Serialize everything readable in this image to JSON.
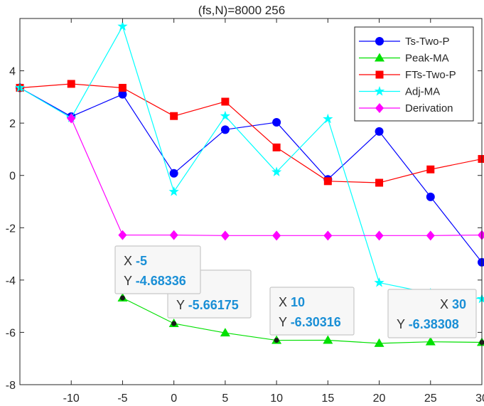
{
  "chart_data": {
    "type": "line",
    "title": "(fs,N)=8000   256",
    "xlabel": "",
    "ylabel": "",
    "x": [
      -15,
      -10,
      -5,
      0,
      5,
      10,
      15,
      20,
      25,
      30
    ],
    "xlim": [
      -15,
      30
    ],
    "ylim": [
      -8,
      6
    ],
    "xticks": [
      -10,
      -5,
      0,
      5,
      10,
      15,
      20,
      25,
      30
    ],
    "yticks": [
      -8,
      -6,
      -4,
      -2,
      0,
      2,
      4
    ],
    "xtick_labels": [
      "-10",
      "-5",
      "0",
      "5",
      "10",
      "15",
      "20",
      "25",
      "30"
    ],
    "ytick_labels": [
      "-8",
      "-6",
      "-4",
      "-2",
      "0",
      "2",
      "4"
    ],
    "legend_position": "top-right",
    "series": [
      {
        "name": "Ts-Two-P",
        "color": "#0000ff",
        "marker": "circle",
        "values": [
          3.35,
          2.25,
          3.1,
          0.08,
          1.75,
          2.03,
          -0.15,
          1.68,
          -0.82,
          -3.32
        ]
      },
      {
        "name": "Peak-MA",
        "color": "#00e000",
        "marker": "triangle",
        "values": [
          null,
          null,
          -4.68336,
          -5.66175,
          -6.02,
          -6.30316,
          -6.3,
          -6.42,
          -6.36,
          -6.38308
        ]
      },
      {
        "name": "FTs-Two-P",
        "color": "#ff0000",
        "marker": "square",
        "values": [
          3.35,
          3.5,
          3.35,
          2.27,
          2.82,
          1.07,
          -0.22,
          -0.28,
          0.23,
          0.63
        ]
      },
      {
        "name": "Adj-MA",
        "color": "#00ffff",
        "marker": "star",
        "values": [
          3.35,
          2.2,
          5.7,
          -0.62,
          2.27,
          0.13,
          2.16,
          -4.1,
          -4.5,
          -4.72
        ]
      },
      {
        "name": "Derivation",
        "color": "#ff00ff",
        "marker": "diamond",
        "values": [
          null,
          2.18,
          -2.28,
          -2.28,
          -2.3,
          -2.3,
          -2.3,
          -2.3,
          -2.3,
          -2.28
        ]
      }
    ],
    "datatips": [
      {
        "x_label": "X",
        "x_value": "-5",
        "y_label": "Y",
        "y_value": "-4.68336",
        "x": -5,
        "y": -4.68336
      },
      {
        "x_label": "",
        "x_value": "",
        "y_label": "Y",
        "y_value": "-5.66175",
        "x": 0,
        "y": -5.66175
      },
      {
        "x_label": "X",
        "x_value": "10",
        "y_label": "Y",
        "y_value": "-6.30316",
        "x": 10,
        "y": -6.30316
      },
      {
        "x_label": "X",
        "x_value": "30",
        "y_label": "Y",
        "y_value": "-6.38308",
        "x": 30,
        "y": -6.38308
      }
    ]
  }
}
